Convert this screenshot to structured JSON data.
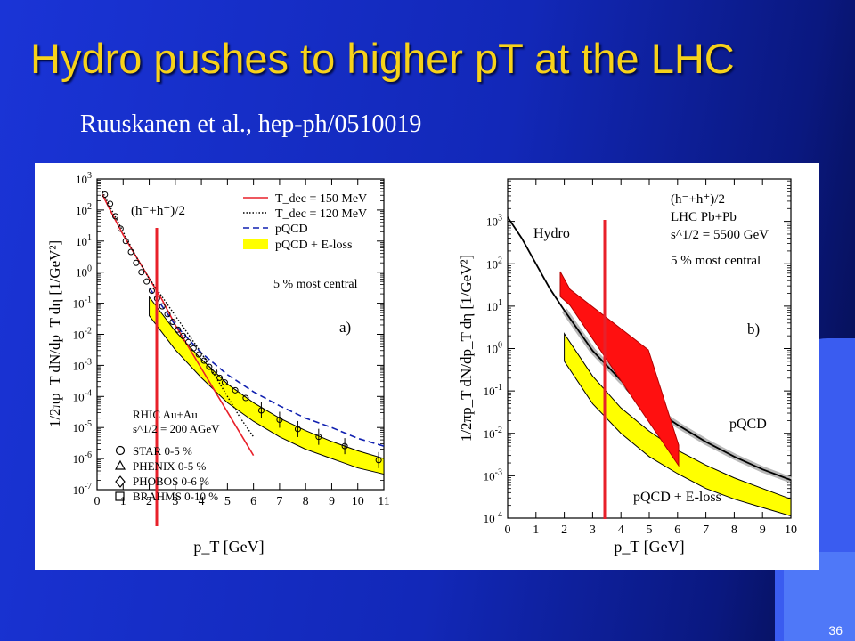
{
  "slide": {
    "title": "Hydro pushes to higher pT at the LHC",
    "subtitle": "Ruuskanen et al., hep-ph/0510019",
    "page_number": "36"
  },
  "colors": {
    "title": "#f7d21a",
    "background": "#1a34d6",
    "marker_line": "#e8202a",
    "band": "#ffff00",
    "pqcd_dash": "#1020b0"
  },
  "chart_data": [
    {
      "type": "line",
      "panel_label": "a)",
      "xlabel": "p_T [GeV]",
      "ylabel": "1/2πp_T dN/dp_T dη [1/GeV²]",
      "xlim": [
        0,
        11
      ],
      "ylim_log10": [
        -7,
        3
      ],
      "x_ticks": [
        "0",
        "1",
        "2",
        "3",
        "4",
        "5",
        "6",
        "7",
        "8",
        "9",
        "10",
        "11"
      ],
      "y_ticks": [
        "10^-7",
        "10^-6",
        "10^-5",
        "10^-4",
        "10^-3",
        "10^-2",
        "10^-1",
        "10^0",
        "10^1",
        "10^2",
        "10^3"
      ],
      "annotation_species": "(h⁻+h⁺)/2",
      "annotation_centrality": "5 % most central",
      "system_lines": [
        "RHIC Au+Au",
        "s^1/2 = 200 AGeV"
      ],
      "legend": [
        {
          "label": "T_dec = 150 MeV",
          "style": "solid-red"
        },
        {
          "label": "T_dec = 120 MeV",
          "style": "dotted-black"
        },
        {
          "label": "pQCD",
          "style": "dashed-blue"
        },
        {
          "label": "pQCD + E-loss",
          "style": "yellow-band"
        }
      ],
      "data_legend": [
        "STAR 0-5 %",
        "PHENIX 0-5 %",
        "PHOBOS 0-6 %",
        "BRAHMS 0-10 %"
      ],
      "series": [
        {
          "name": "T_dec = 150 MeV",
          "x": [
            0.2,
            0.5,
            1,
            1.5,
            2,
            2.5,
            3,
            3.5,
            4,
            4.5,
            5,
            5.5,
            6
          ],
          "y_log10": [
            2.5,
            2.0,
            1.2,
            0.5,
            -0.2,
            -0.9,
            -1.7,
            -2.4,
            -3.1,
            -3.8,
            -4.5,
            -5.2,
            -5.9
          ]
        },
        {
          "name": "T_dec = 120 MeV",
          "x": [
            0.2,
            0.5,
            1,
            1.5,
            2,
            2.5,
            3,
            3.5,
            4,
            4.5,
            5,
            5.5,
            6
          ],
          "y_log10": [
            2.6,
            2.1,
            1.3,
            0.5,
            -0.2,
            -0.8,
            -1.4,
            -2.0,
            -2.6,
            -3.3,
            -4.0,
            -4.7,
            -5.3
          ]
        },
        {
          "name": "pQCD",
          "x": [
            2,
            3,
            4,
            5,
            6,
            7,
            8,
            9,
            10,
            11
          ],
          "y_log10": [
            -0.5,
            -1.7,
            -2.6,
            -3.3,
            -3.85,
            -4.3,
            -4.7,
            -5.0,
            -5.35,
            -5.6
          ]
        },
        {
          "name": "pQCD + E-loss",
          "x": [
            2,
            3,
            4,
            5,
            6,
            7,
            8,
            9,
            10,
            11
          ],
          "y_low_log10": [
            -1.4,
            -2.5,
            -3.4,
            -4.2,
            -4.8,
            -5.3,
            -5.7,
            -6.0,
            -6.3,
            -6.5
          ],
          "y_high_log10": [
            -0.8,
            -1.9,
            -2.8,
            -3.6,
            -4.2,
            -4.7,
            -5.1,
            -5.45,
            -5.75,
            -6.0
          ]
        },
        {
          "name": "STAR 0-5 %",
          "x": [
            0.3,
            0.5,
            0.7,
            0.9,
            1.1,
            1.3,
            1.5,
            1.7,
            1.9,
            2.1,
            2.3,
            2.5,
            2.7,
            2.9,
            3.1,
            3.3,
            3.5,
            3.7,
            3.9,
            4.1,
            4.3,
            4.5,
            4.7,
            4.9,
            5.3,
            5.7,
            6.3,
            7.0,
            7.7,
            8.5,
            9.5,
            10.8
          ],
          "y_log10": [
            2.5,
            2.2,
            1.8,
            1.4,
            1.0,
            0.65,
            0.3,
            0.0,
            -0.3,
            -0.6,
            -0.85,
            -1.1,
            -1.35,
            -1.6,
            -1.85,
            -2.05,
            -2.25,
            -2.45,
            -2.65,
            -2.85,
            -3.05,
            -3.2,
            -3.4,
            -3.55,
            -3.8,
            -4.05,
            -4.45,
            -4.75,
            -5.05,
            -5.3,
            -5.6,
            -6.05
          ]
        }
      ]
    },
    {
      "type": "line",
      "panel_label": "b)",
      "xlabel": "p_T [GeV]",
      "ylabel": "1/2πp_T dN/dp_T dη [1/GeV²]",
      "xlim": [
        0,
        10
      ],
      "ylim_log10": [
        -4,
        4
      ],
      "x_ticks": [
        "0",
        "1",
        "2",
        "3",
        "4",
        "5",
        "6",
        "7",
        "8",
        "9",
        "10"
      ],
      "y_ticks": [
        "10^-4",
        "10^-3",
        "10^-2",
        "10^-1",
        "10^0",
        "10^1",
        "10^2",
        "10^3"
      ],
      "annotation_lines": [
        "(h⁻+h⁺)/2",
        "LHC Pb+Pb",
        "s^1/2 = 5500 GeV",
        "5 % most central"
      ],
      "curve_labels": [
        "Hydro",
        "pQCD",
        "pQCD + E-loss"
      ],
      "series": [
        {
          "name": "Hydro",
          "x": [
            0,
            0.5,
            1,
            1.5,
            2,
            2.5,
            3,
            3.5,
            4,
            4.5,
            5,
            5.5,
            6
          ],
          "y_log10": [
            3.1,
            2.6,
            2.0,
            1.4,
            0.9,
            0.4,
            0.0,
            -0.4,
            -0.8,
            -1.2,
            -1.6,
            -2.0,
            -2.4
          ]
        },
        {
          "name": "pQCD",
          "x": [
            2,
            3,
            4,
            5,
            6,
            7,
            8,
            9,
            10
          ],
          "y_log10": [
            0.9,
            -0.05,
            -0.75,
            -1.35,
            -1.8,
            -2.2,
            -2.55,
            -2.85,
            -3.1
          ]
        },
        {
          "name": "pQCD + E-loss",
          "x": [
            2,
            3,
            4,
            5,
            6,
            7,
            8,
            9,
            10
          ],
          "y_low_log10": [
            -0.3,
            -1.3,
            -2.0,
            -2.55,
            -2.95,
            -3.3,
            -3.55,
            -3.75,
            -3.95
          ],
          "y_high_log10": [
            0.35,
            -0.65,
            -1.4,
            -1.95,
            -2.4,
            -2.75,
            -3.05,
            -3.3,
            -3.55
          ]
        }
      ]
    }
  ]
}
